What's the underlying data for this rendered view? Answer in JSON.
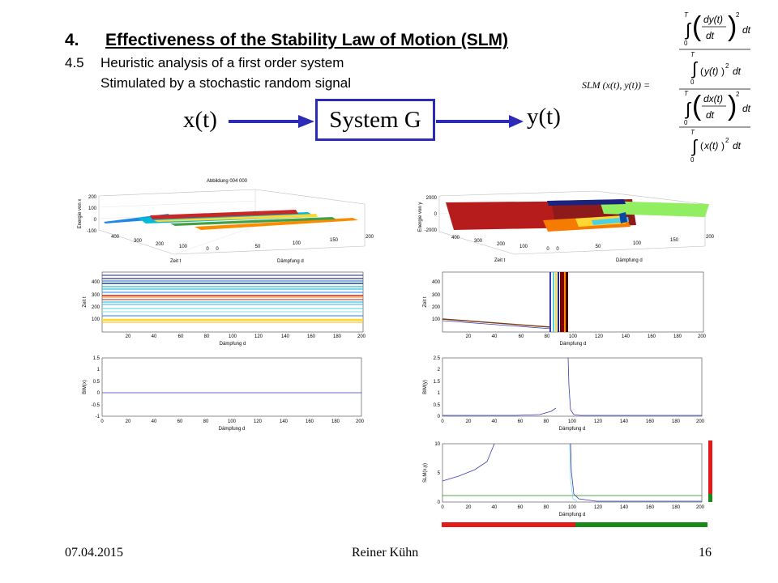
{
  "slide": {
    "section_number": "4.",
    "section_title": "Effectiveness of the Stability Law of Motion (SLM)",
    "subsection_number": "4.5",
    "subsection_title": "Heuristic analysis of a first order system",
    "subtitle_line2": "Stimulated by a stochastic random signal"
  },
  "diagram": {
    "input": "x(t)",
    "system": "System G",
    "output": "y(t)"
  },
  "formula": {
    "lhs": "SLM (x(t), y(t)) ="
  },
  "plots": {
    "surface_x": {
      "title": "Abbildung 004 000",
      "zlabel": "Energie von x",
      "xlabel": "Zeit t",
      "ylabel": "Dämpfung d",
      "zticks": [
        "200",
        "100",
        "0",
        "-100"
      ],
      "tticks": [
        "400",
        "300",
        "200",
        "100",
        "0"
      ],
      "dticks": [
        "0",
        "50",
        "100",
        "150",
        "200"
      ]
    },
    "surface_y": {
      "zlabel": "Energie von y",
      "xlabel": "Zeit t",
      "ylabel": "Dämpfung d",
      "zticks": [
        "2000",
        "0",
        "-2000"
      ],
      "tticks": [
        "400",
        "300",
        "200",
        "100",
        "0"
      ],
      "dticks": [
        "0",
        "50",
        "100",
        "150",
        "200"
      ]
    },
    "top_x": {
      "ylabel": "Zeit t",
      "xlabel": "Dämpfung d",
      "yticks": [
        "400",
        "300",
        "200",
        "100"
      ],
      "xticks": [
        "20",
        "40",
        "60",
        "80",
        "100",
        "120",
        "140",
        "160",
        "180",
        "200"
      ]
    },
    "top_y": {
      "ylabel": "Zeit t",
      "xlabel": "Dämpfung d",
      "yticks": [
        "400",
        "300",
        "200",
        "100"
      ],
      "xticks": [
        "20",
        "40",
        "60",
        "80",
        "100",
        "120",
        "140",
        "160",
        "180",
        "200"
      ]
    },
    "bim_x": {
      "ylabel": "BIM(x)",
      "xlabel": "Dämpfung d",
      "yticks": [
        "1.5",
        "1",
        "0.5",
        "0",
        "-0.5",
        "-1"
      ],
      "xticks": [
        "0",
        "20",
        "40",
        "60",
        "80",
        "100",
        "120",
        "140",
        "160",
        "180",
        "200"
      ]
    },
    "bim_y": {
      "ylabel": "BIM(y)",
      "xlabel": "Dämpfung d",
      "yticks": [
        "2.5",
        "2",
        "1.5",
        "1",
        "0.5",
        "0"
      ],
      "xticks": [
        "0",
        "20",
        "40",
        "60",
        "80",
        "100",
        "120",
        "140",
        "160",
        "180",
        "200"
      ]
    },
    "slm": {
      "ylabel": "SLM(x,y)",
      "xlabel": "Dämpfung d",
      "yticks": [
        "10",
        "5",
        "0"
      ],
      "xticks": [
        "0",
        "20",
        "40",
        "60",
        "80",
        "100",
        "120",
        "140",
        "160",
        "180",
        "200"
      ]
    }
  },
  "footer": {
    "date": "07.04.2015",
    "author": "Reiner Kühn",
    "page": "16"
  },
  "colors": {
    "arrow": "#2b2bb8",
    "red": "#e41a1a",
    "green": "#1a8a1a",
    "line": "#3a3ab0"
  }
}
